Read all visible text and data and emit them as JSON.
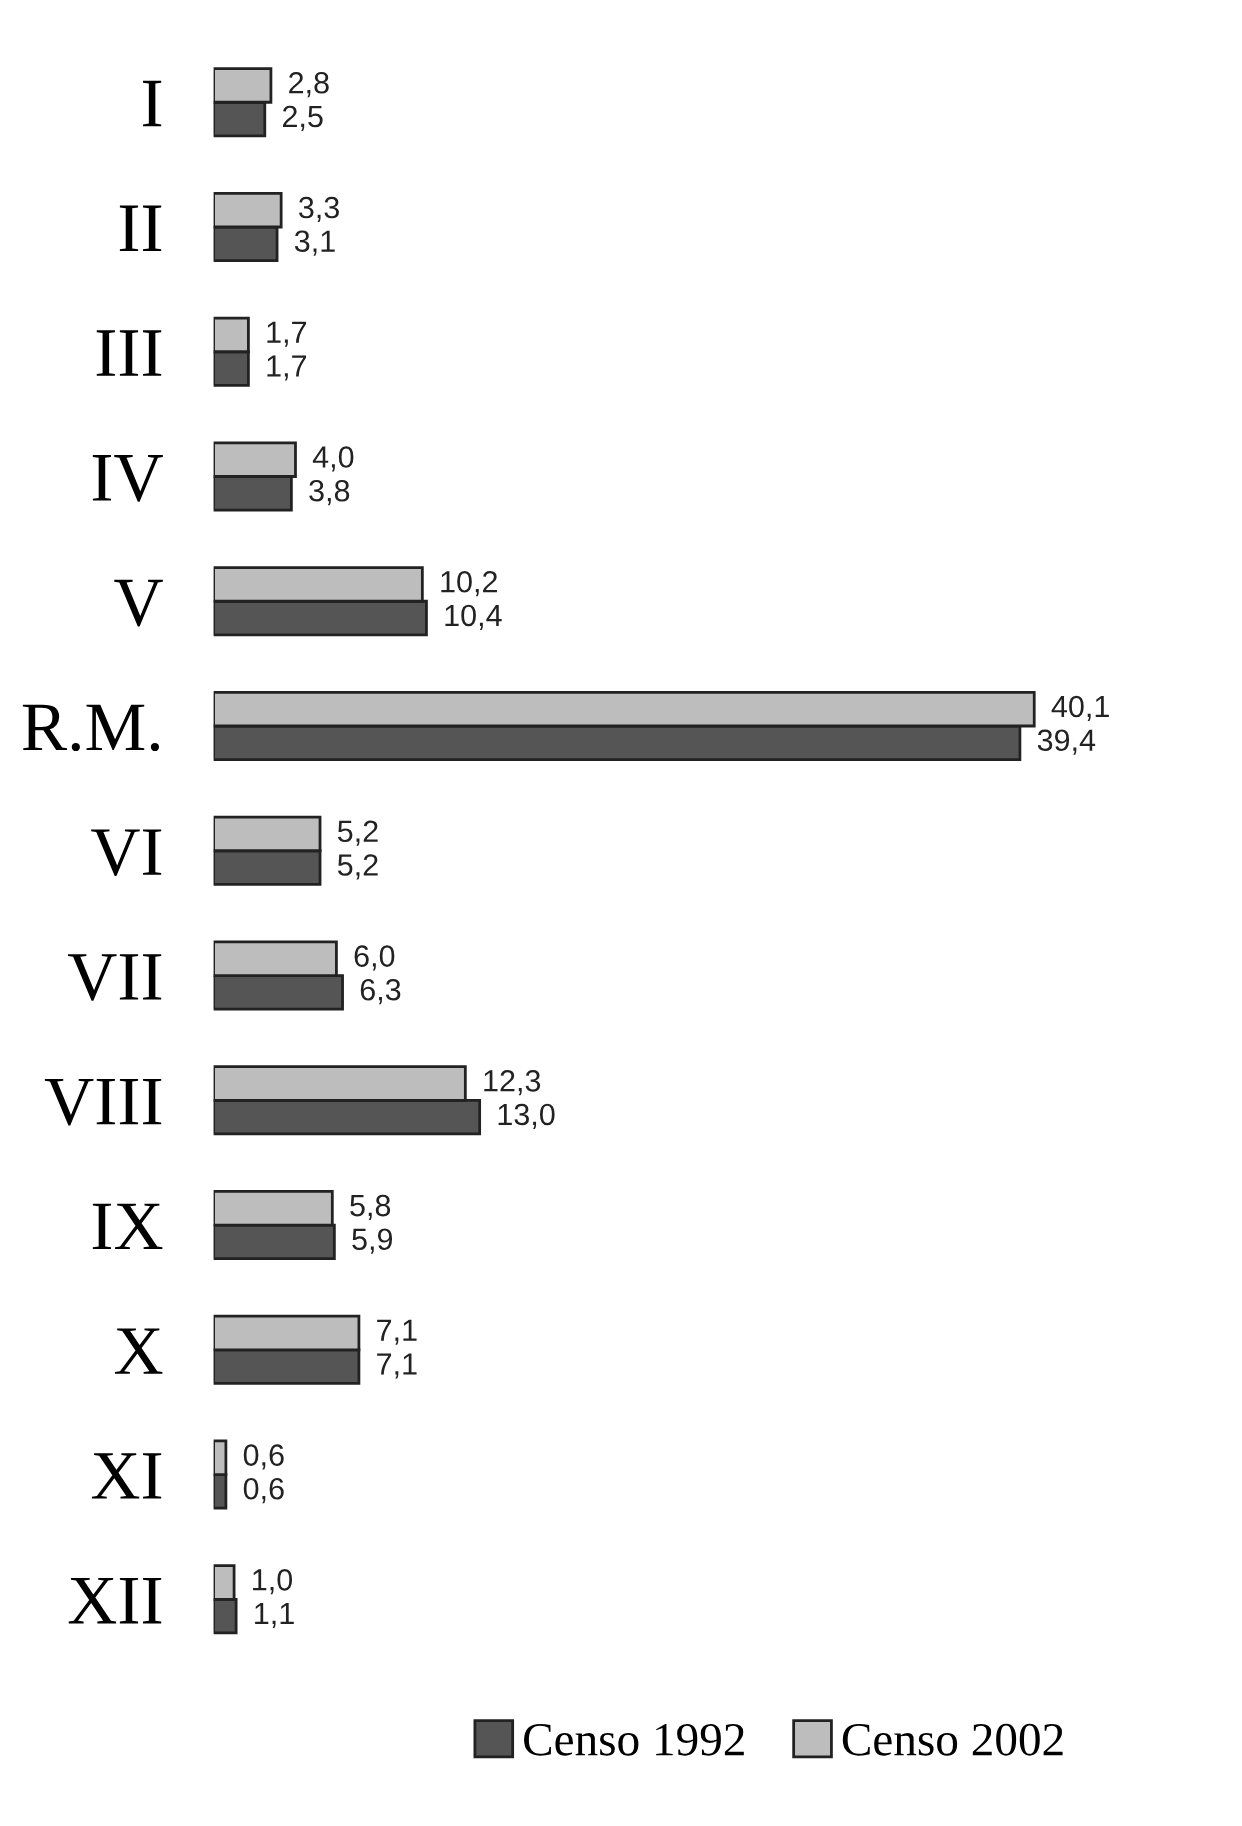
{
  "chart_data": {
    "type": "bar",
    "orientation": "horizontal",
    "legend": "bottom",
    "categories": [
      "I",
      "II",
      "III",
      "IV",
      "V",
      "R.M.",
      "VI",
      "VII",
      "VIII",
      "IX",
      "X",
      "XI",
      "XII"
    ],
    "series": [
      {
        "name": "Censo 1992",
        "color": "#555555",
        "values": [
          2.5,
          3.1,
          1.7,
          3.8,
          10.4,
          39.4,
          5.2,
          6.3,
          13.0,
          5.9,
          7.1,
          0.6,
          1.1
        ],
        "value_labels": [
          "2,5",
          "3,1",
          "1,7",
          "3,8",
          "10,4",
          "39,4",
          "5,2",
          "6,3",
          "13,0",
          "5,9",
          "7,1",
          "0,6",
          "1,1"
        ]
      },
      {
        "name": "Censo 2002",
        "color": "#bdbdbd",
        "values": [
          2.8,
          3.3,
          1.7,
          4.0,
          10.2,
          40.1,
          5.2,
          6.0,
          12.3,
          5.8,
          7.1,
          0.6,
          1.0
        ],
        "value_labels": [
          "2,8",
          "3,3",
          "1,7",
          "4,0",
          "10,2",
          "40,1",
          "5,2",
          "6,0",
          "12,3",
          "5,8",
          "7,1",
          "0,6",
          "1,0"
        ]
      }
    ]
  }
}
